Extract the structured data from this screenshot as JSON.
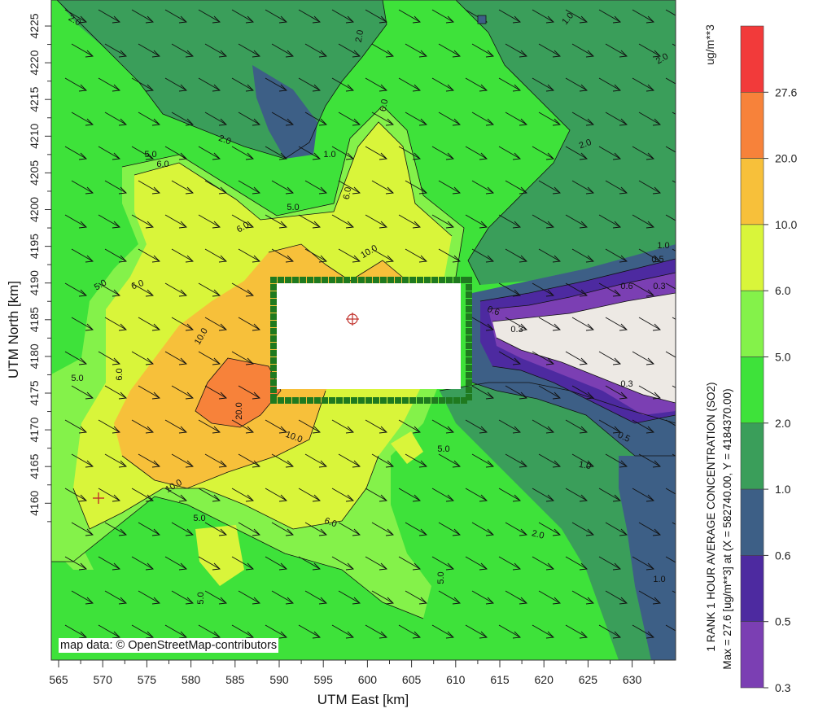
{
  "map": {
    "x_axis": {
      "title": "UTM East [km]",
      "ticks": [
        "565",
        "570",
        "575",
        "580",
        "585",
        "590",
        "595",
        "600",
        "605",
        "610",
        "615",
        "620",
        "625",
        "630"
      ]
    },
    "y_axis": {
      "title": "UTM North [km]",
      "ticks": [
        "4225",
        "4220",
        "4215",
        "4210",
        "4205",
        "4200",
        "4195",
        "4190",
        "4185",
        "4180",
        "4175",
        "4170",
        "4165",
        "4160"
      ]
    },
    "credit": "map data: © OpenStreetMap-contributors",
    "contour_labels": [
      "2.0",
      "2.0",
      "2.0",
      "2.0",
      "2.0",
      "2.0",
      "1.0",
      "1.0",
      "1.0",
      "1.0",
      "1.0",
      "0.6",
      "0.6",
      "0.5",
      "0.5",
      "0.3",
      "0.3",
      "0.3",
      "5.0",
      "5.0",
      "5.0",
      "5.0",
      "5.0",
      "5.0",
      "5.0",
      "5.0",
      "6.0",
      "6.0",
      "6.0",
      "6.0",
      "6.0",
      "6.0",
      "6.0",
      "10.0",
      "10.0",
      "10.0",
      "10.0",
      "20.0"
    ],
    "colors": {
      "level_0_3": "#7b3fb3",
      "level_0_5": "#4d2aa0",
      "level_0_6": "#3d5f86",
      "level_1_0": "#3a9e5a",
      "level_2_0": "#3ee23a",
      "level_5_0": "#84f24a",
      "level_6_0": "#d9f53a",
      "level_10_0": "#f7c03a",
      "level_20_0": "#f7823a",
      "level_27_6": "#f23a3a",
      "grid_boundary": "#1f7a1f",
      "source_marker": "#c0302a"
    }
  },
  "legend": {
    "unit": "ug/m**3",
    "levels": [
      "27.6",
      "20.0",
      "10.0",
      "6.0",
      "5.0",
      "2.0",
      "1.0",
      "0.6",
      "0.5",
      "0.3"
    ]
  },
  "side_title": {
    "line1": "1 RANK 1 HOUR AVERAGE CONCENTRATION (SO2)",
    "line2": "Max = 27.6 [ug/m**3] at (X = 582740.00,  Y = 4184370.00)"
  }
}
